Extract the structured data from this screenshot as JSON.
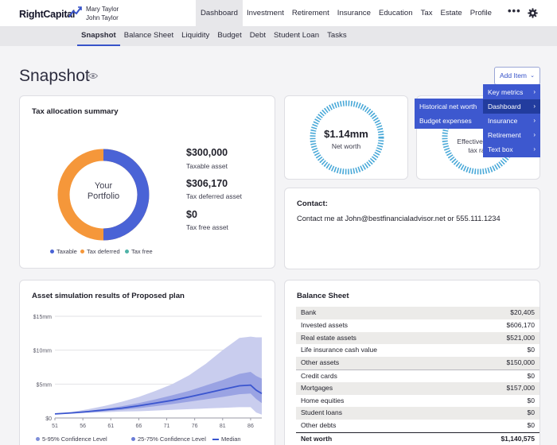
{
  "app": {
    "logo_text": "RightCapital",
    "clients": [
      "Mary Taylor",
      "John Taylor"
    ]
  },
  "nav": {
    "items": [
      "Dashboard",
      "Investment",
      "Retirement",
      "Insurance",
      "Education",
      "Tax",
      "Estate",
      "Profile"
    ],
    "active": "Dashboard",
    "more": "•••"
  },
  "subnav": {
    "items": [
      "Snapshot",
      "Balance Sheet",
      "Liquidity",
      "Budget",
      "Debt",
      "Student Loan",
      "Tasks"
    ],
    "active": "Snapshot"
  },
  "page": {
    "title": "Snapshot",
    "add_item_label": "Add Item"
  },
  "tax_allocation": {
    "title": "Tax allocation summary",
    "center_label_1": "Your",
    "center_label_2": "Portfolio",
    "taxable_amount": "$300,000",
    "taxable_label": "Taxable asset",
    "deferred_amount": "$306,170",
    "deferred_label": "Tax deferred asset",
    "free_amount": "$0",
    "free_label": "Tax free asset",
    "legend": [
      "Taxable",
      "Tax deferred",
      "Tax free"
    ]
  },
  "net_worth": {
    "value": "$1.14mm",
    "label": "Net worth"
  },
  "tax_rate_card": {
    "line1": "Effective f",
    "line2": "tax ra"
  },
  "add_item_menu": {
    "left": [
      "Historical net worth",
      "Budget expenses"
    ],
    "right": [
      "Key metrics",
      "Dashboard",
      "Insurance",
      "Retirement",
      "Text box"
    ],
    "highlighted": "Dashboard"
  },
  "contact": {
    "title": "Contact:",
    "text": "Contact me at John@bestfinancialadvisor.net or 555.111.1234"
  },
  "simulation": {
    "title": "Asset simulation results of Proposed plan",
    "legend": [
      "5-95% Confidence Level",
      "25-75% Confidence Level",
      "Median"
    ]
  },
  "balance_sheet": {
    "title": "Balance Sheet",
    "rows": [
      {
        "label": "Bank",
        "value": "$20,405"
      },
      {
        "label": "Invested assets",
        "value": "$606,170"
      },
      {
        "label": "Real estate assets",
        "value": "$521,000"
      },
      {
        "label": "Life insurance cash value",
        "value": "$0"
      },
      {
        "label": "Other assets",
        "value": "$150,000"
      },
      {
        "label": "Credit cards",
        "value": "$0"
      },
      {
        "label": "Mortgages",
        "value": "$157,000"
      },
      {
        "label": "Home equities",
        "value": "$0"
      },
      {
        "label": "Student loans",
        "value": "$0"
      },
      {
        "label": "Other debts",
        "value": "$0"
      },
      {
        "label": "Net worth",
        "value": "$1,140,575"
      }
    ]
  },
  "colors": {
    "accent": "#3753c9",
    "taxable": "#4a63d6",
    "deferred": "#f5973a",
    "tax_free": "#4fb3a8",
    "band_outer": "#c9cdee",
    "band_inner": "#9aa3e3",
    "median": "#3a55cf"
  },
  "chart_data": {
    "type": "area",
    "title": "Asset simulation results of Proposed plan",
    "x": [
      51,
      54,
      57,
      60,
      63,
      66,
      69,
      72,
      75,
      78,
      81,
      84,
      86,
      87,
      88
    ],
    "xticks": [
      51,
      56,
      61,
      66,
      71,
      76,
      81,
      86
    ],
    "ytick_labels": [
      "$0",
      "$5mm",
      "$10mm",
      "$15mm"
    ],
    "ylim": [
      0,
      15
    ],
    "yunit": "mm",
    "series": [
      {
        "name": "5-95% Confidence Level",
        "lower": [
          0.6,
          0.65,
          0.75,
          0.85,
          0.95,
          1.0,
          1.1,
          1.2,
          1.3,
          1.4,
          1.5,
          1.6,
          1.6,
          0.8,
          0.5
        ],
        "upper": [
          0.6,
          0.9,
          1.3,
          1.8,
          2.4,
          3.1,
          4.0,
          5.0,
          6.3,
          8.0,
          10.0,
          11.8,
          12.0,
          11.9,
          11.9
        ]
      },
      {
        "name": "25-75% Confidence Level",
        "lower": [
          0.6,
          0.7,
          0.85,
          1.0,
          1.2,
          1.45,
          1.75,
          2.05,
          2.4,
          2.75,
          3.1,
          3.5,
          3.6,
          2.8,
          2.2
        ],
        "upper": [
          0.6,
          0.8,
          1.05,
          1.35,
          1.75,
          2.2,
          2.75,
          3.35,
          4.0,
          4.8,
          5.6,
          6.5,
          6.8,
          6.2,
          5.8
        ]
      },
      {
        "name": "Median",
        "values": [
          0.6,
          0.75,
          0.95,
          1.2,
          1.45,
          1.8,
          2.2,
          2.6,
          3.1,
          3.65,
          4.2,
          4.75,
          4.85,
          4.1,
          3.6
        ]
      }
    ]
  }
}
